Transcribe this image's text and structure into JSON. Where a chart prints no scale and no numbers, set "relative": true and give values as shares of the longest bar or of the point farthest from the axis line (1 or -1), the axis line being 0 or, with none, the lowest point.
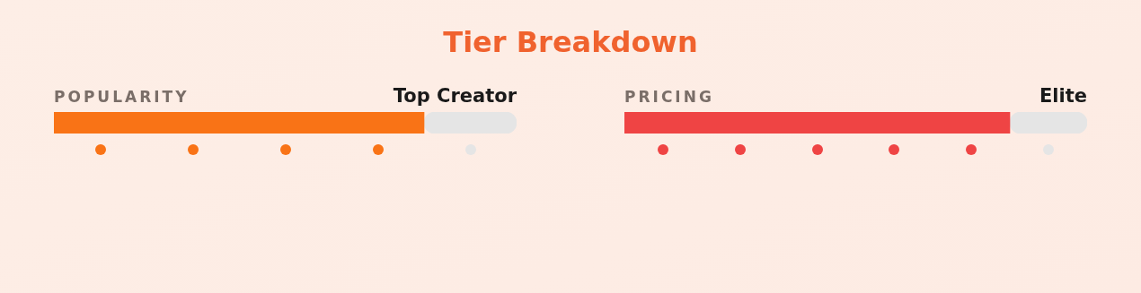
{
  "chart_data": [
    {
      "type": "bar",
      "title": "Tier Breakdown",
      "ylabel": "POPULARITY",
      "annotations": [
        "Top Creator"
      ],
      "orientation": "horizontal",
      "stacked": true,
      "relative": true,
      "categories": [
        null
      ],
      "series": [
        {
          "color": "#f97316",
          "values": [
            0.8
          ]
        },
        {
          "color": "#e5e5e5",
          "values": [
            0.2
          ]
        }
      ]
    },
    {
      "type": "bar",
      "ylabel": "PRICING",
      "annotations": [
        "Elite"
      ],
      "orientation": "horizontal",
      "stacked": true,
      "relative": true,
      "categories": [
        null
      ],
      "series": [
        {
          "color": "#ef4444",
          "values": [
            0.833
          ]
        },
        {
          "color": "#e5e5e5",
          "values": [
            0.167
          ]
        }
      ]
    }
  ]
}
